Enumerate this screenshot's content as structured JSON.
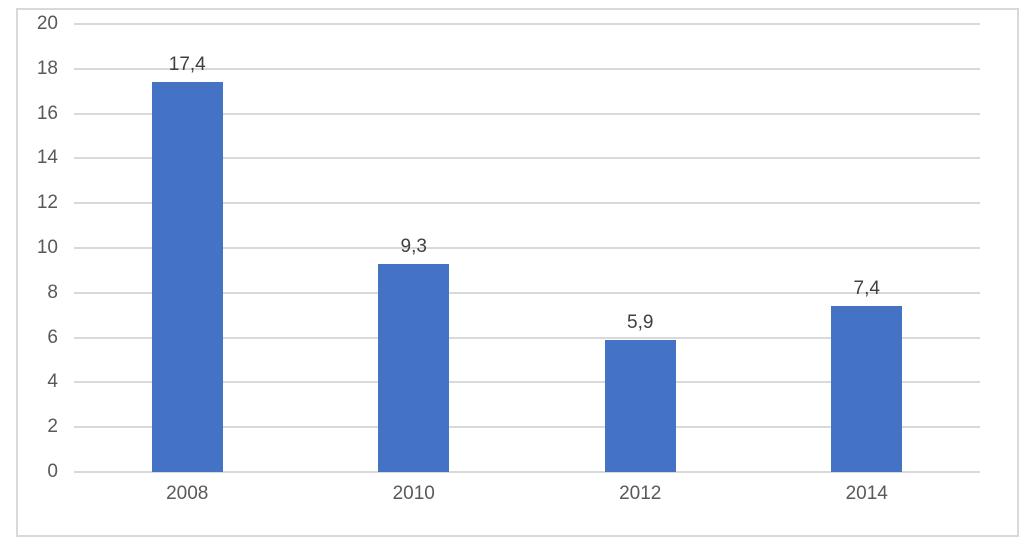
{
  "chart_data": {
    "type": "bar",
    "title": "",
    "xlabel": "",
    "ylabel": "",
    "categories": [
      "2008",
      "2010",
      "2012",
      "2014"
    ],
    "values": [
      17.4,
      9.3,
      5.9,
      7.4
    ],
    "value_labels": [
      "17,4",
      "9,3",
      "5,9",
      "7,4"
    ],
    "ylim": [
      0,
      20
    ],
    "ytick_step": 2,
    "ytick_labels": [
      "0",
      "2",
      "4",
      "6",
      "8",
      "10",
      "12",
      "14",
      "16",
      "18",
      "20"
    ],
    "grid": true,
    "legend": false,
    "colors": {
      "bar": "#4472C4",
      "gridline": "#D9D9D9",
      "axis_tick_label": "#595959",
      "data_label": "#404040",
      "frame_border": "#D9D9D9",
      "background": "#FFFFFF"
    }
  }
}
